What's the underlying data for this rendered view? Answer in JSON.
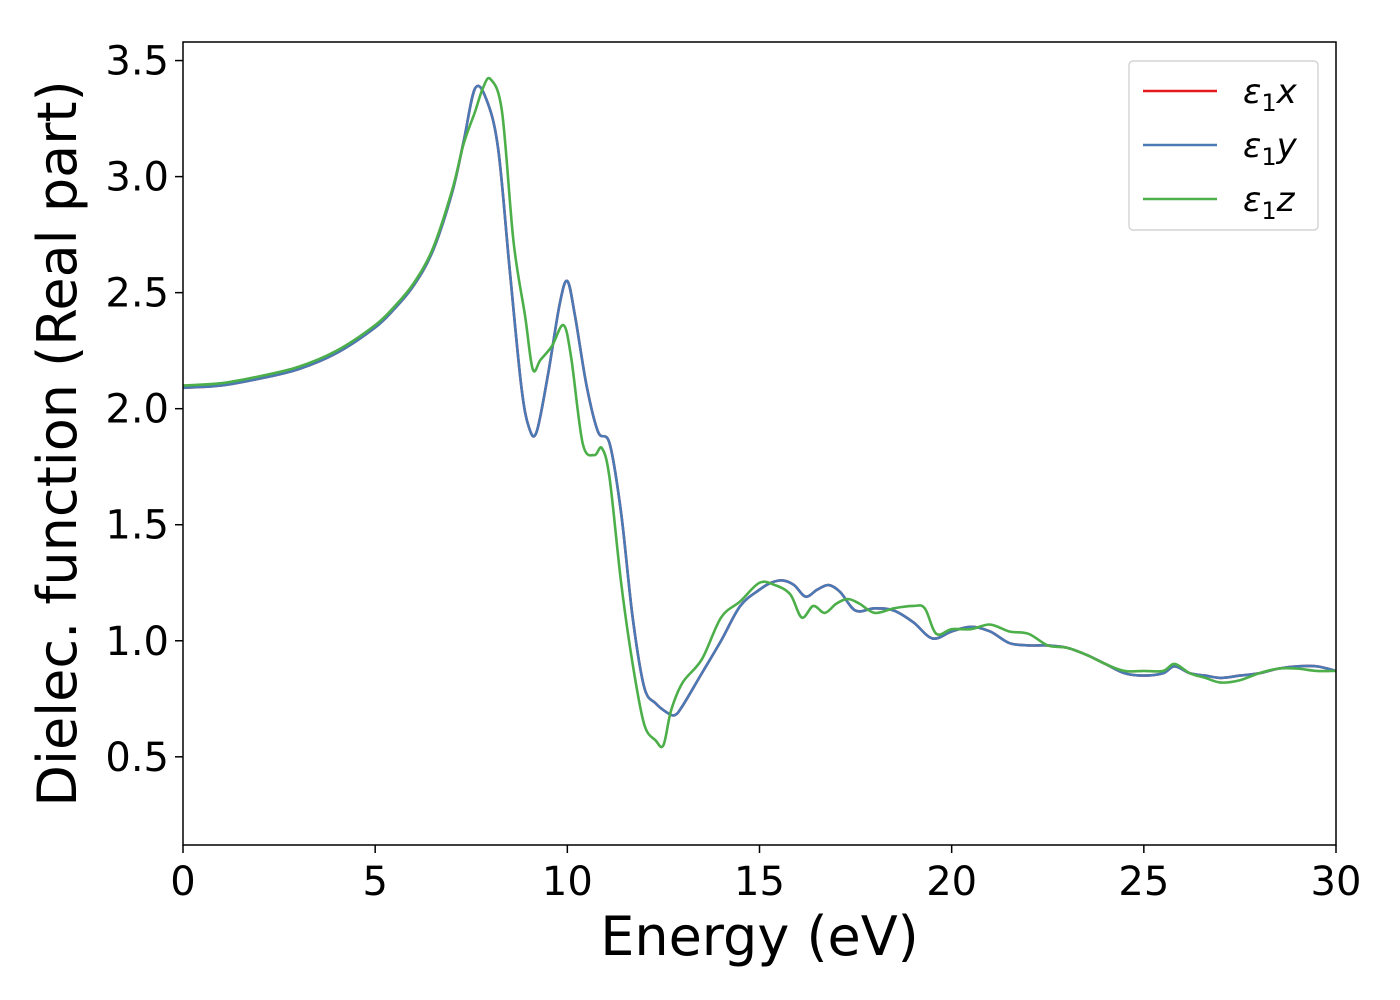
{
  "chart_data": {
    "type": "line",
    "xlabel": "Energy (eV)",
    "ylabel": "Dielec. function (Real part)",
    "xlim": [
      0,
      30
    ],
    "ylim": [
      0.12,
      3.58
    ],
    "xticks": [
      "0",
      "5",
      "10",
      "15",
      "20",
      "25",
      "30"
    ],
    "yticks": [
      "0.5",
      "1.0",
      "1.5",
      "2.0",
      "2.5",
      "3.0",
      "3.5"
    ],
    "grid": false,
    "legend_position": "top-right",
    "series": [
      {
        "name": "ε1x",
        "legend_base": "ε",
        "legend_sub": "1",
        "legend_suffix": "x",
        "color": "#e41a1c",
        "x": [
          0,
          1,
          2,
          3,
          4,
          5,
          5.5,
          6,
          6.5,
          7,
          7.3,
          7.6,
          7.9,
          8.2,
          8.5,
          8.8,
          9.0,
          9.2,
          9.5,
          9.8,
          10.0,
          10.2,
          10.5,
          10.8,
          11.1,
          11.4,
          11.7,
          12.0,
          12.3,
          12.6,
          12.8,
          13.0,
          13.5,
          14.0,
          14.5,
          15.0,
          15.3,
          15.6,
          15.9,
          16.2,
          16.5,
          16.8,
          17.1,
          17.5,
          18.0,
          18.5,
          19.0,
          19.5,
          20.0,
          20.5,
          21.0,
          21.5,
          22.0,
          22.5,
          23.0,
          23.5,
          24.0,
          24.5,
          25.0,
          25.5,
          25.8,
          26.2,
          26.6,
          27.0,
          27.5,
          28.0,
          28.5,
          29.0,
          29.5,
          30.0
        ],
        "y": [
          2.09,
          2.1,
          2.13,
          2.17,
          2.24,
          2.35,
          2.43,
          2.53,
          2.68,
          2.93,
          3.15,
          3.38,
          3.33,
          3.12,
          2.6,
          2.1,
          1.92,
          1.9,
          2.15,
          2.45,
          2.55,
          2.4,
          2.1,
          1.9,
          1.85,
          1.55,
          1.1,
          0.8,
          0.73,
          0.69,
          0.68,
          0.72,
          0.86,
          1.0,
          1.15,
          1.22,
          1.25,
          1.26,
          1.24,
          1.19,
          1.22,
          1.24,
          1.21,
          1.13,
          1.14,
          1.13,
          1.08,
          1.01,
          1.04,
          1.06,
          1.04,
          0.99,
          0.98,
          0.98,
          0.97,
          0.94,
          0.9,
          0.86,
          0.85,
          0.86,
          0.89,
          0.86,
          0.85,
          0.84,
          0.85,
          0.86,
          0.88,
          0.89,
          0.89,
          0.87
        ]
      },
      {
        "name": "ε1y",
        "legend_base": "ε",
        "legend_sub": "1",
        "legend_suffix": "y",
        "color": "#4a7ab5",
        "x": [
          0,
          1,
          2,
          3,
          4,
          5,
          5.5,
          6,
          6.5,
          7,
          7.3,
          7.6,
          7.9,
          8.2,
          8.5,
          8.8,
          9.0,
          9.2,
          9.5,
          9.8,
          10.0,
          10.2,
          10.5,
          10.8,
          11.1,
          11.4,
          11.7,
          12.0,
          12.3,
          12.6,
          12.8,
          13.0,
          13.5,
          14.0,
          14.5,
          15.0,
          15.3,
          15.6,
          15.9,
          16.2,
          16.5,
          16.8,
          17.1,
          17.5,
          18.0,
          18.5,
          19.0,
          19.5,
          20.0,
          20.5,
          21.0,
          21.5,
          22.0,
          22.5,
          23.0,
          23.5,
          24.0,
          24.5,
          25.0,
          25.5,
          25.8,
          26.2,
          26.6,
          27.0,
          27.5,
          28.0,
          28.5,
          29.0,
          29.5,
          30.0
        ],
        "y": [
          2.09,
          2.1,
          2.13,
          2.17,
          2.24,
          2.35,
          2.43,
          2.53,
          2.68,
          2.93,
          3.15,
          3.38,
          3.33,
          3.12,
          2.6,
          2.1,
          1.92,
          1.9,
          2.15,
          2.45,
          2.55,
          2.4,
          2.1,
          1.9,
          1.85,
          1.55,
          1.1,
          0.8,
          0.73,
          0.69,
          0.68,
          0.72,
          0.86,
          1.0,
          1.15,
          1.22,
          1.25,
          1.26,
          1.24,
          1.19,
          1.22,
          1.24,
          1.21,
          1.13,
          1.14,
          1.13,
          1.08,
          1.01,
          1.04,
          1.06,
          1.04,
          0.99,
          0.98,
          0.98,
          0.97,
          0.94,
          0.9,
          0.86,
          0.85,
          0.86,
          0.89,
          0.86,
          0.85,
          0.84,
          0.85,
          0.86,
          0.88,
          0.89,
          0.89,
          0.87
        ]
      },
      {
        "name": "ε1z",
        "legend_base": "ε",
        "legend_sub": "1",
        "legend_suffix": "z",
        "color": "#4daf4a",
        "x": [
          0,
          1,
          2,
          3,
          4,
          5,
          5.5,
          6,
          6.5,
          7,
          7.3,
          7.6,
          7.8,
          8.0,
          8.3,
          8.6,
          8.9,
          9.1,
          9.3,
          9.6,
          9.9,
          10.1,
          10.4,
          10.7,
          10.9,
          11.1,
          11.4,
          11.7,
          12.0,
          12.3,
          12.5,
          12.7,
          13.0,
          13.5,
          14.0,
          14.5,
          15.0,
          15.4,
          15.8,
          16.1,
          16.4,
          16.7,
          17.0,
          17.3,
          17.6,
          18.0,
          18.5,
          19.0,
          19.3,
          19.6,
          20.0,
          20.5,
          21.0,
          21.5,
          22.0,
          22.5,
          23.0,
          23.5,
          24.0,
          24.5,
          25.0,
          25.5,
          25.8,
          26.2,
          26.6,
          27.0,
          27.5,
          28.0,
          28.5,
          29.0,
          29.5,
          30.0
        ],
        "y": [
          2.1,
          2.11,
          2.14,
          2.18,
          2.25,
          2.36,
          2.44,
          2.54,
          2.69,
          2.94,
          3.14,
          3.28,
          3.38,
          3.42,
          3.28,
          2.72,
          2.4,
          2.17,
          2.21,
          2.27,
          2.36,
          2.22,
          1.85,
          1.8,
          1.83,
          1.7,
          1.25,
          0.9,
          0.64,
          0.57,
          0.55,
          0.7,
          0.82,
          0.92,
          1.1,
          1.17,
          1.25,
          1.24,
          1.2,
          1.1,
          1.15,
          1.12,
          1.16,
          1.18,
          1.16,
          1.12,
          1.14,
          1.15,
          1.14,
          1.03,
          1.05,
          1.05,
          1.07,
          1.04,
          1.03,
          0.98,
          0.97,
          0.94,
          0.9,
          0.87,
          0.87,
          0.87,
          0.9,
          0.86,
          0.84,
          0.82,
          0.83,
          0.86,
          0.88,
          0.88,
          0.87,
          0.87
        ]
      }
    ]
  }
}
